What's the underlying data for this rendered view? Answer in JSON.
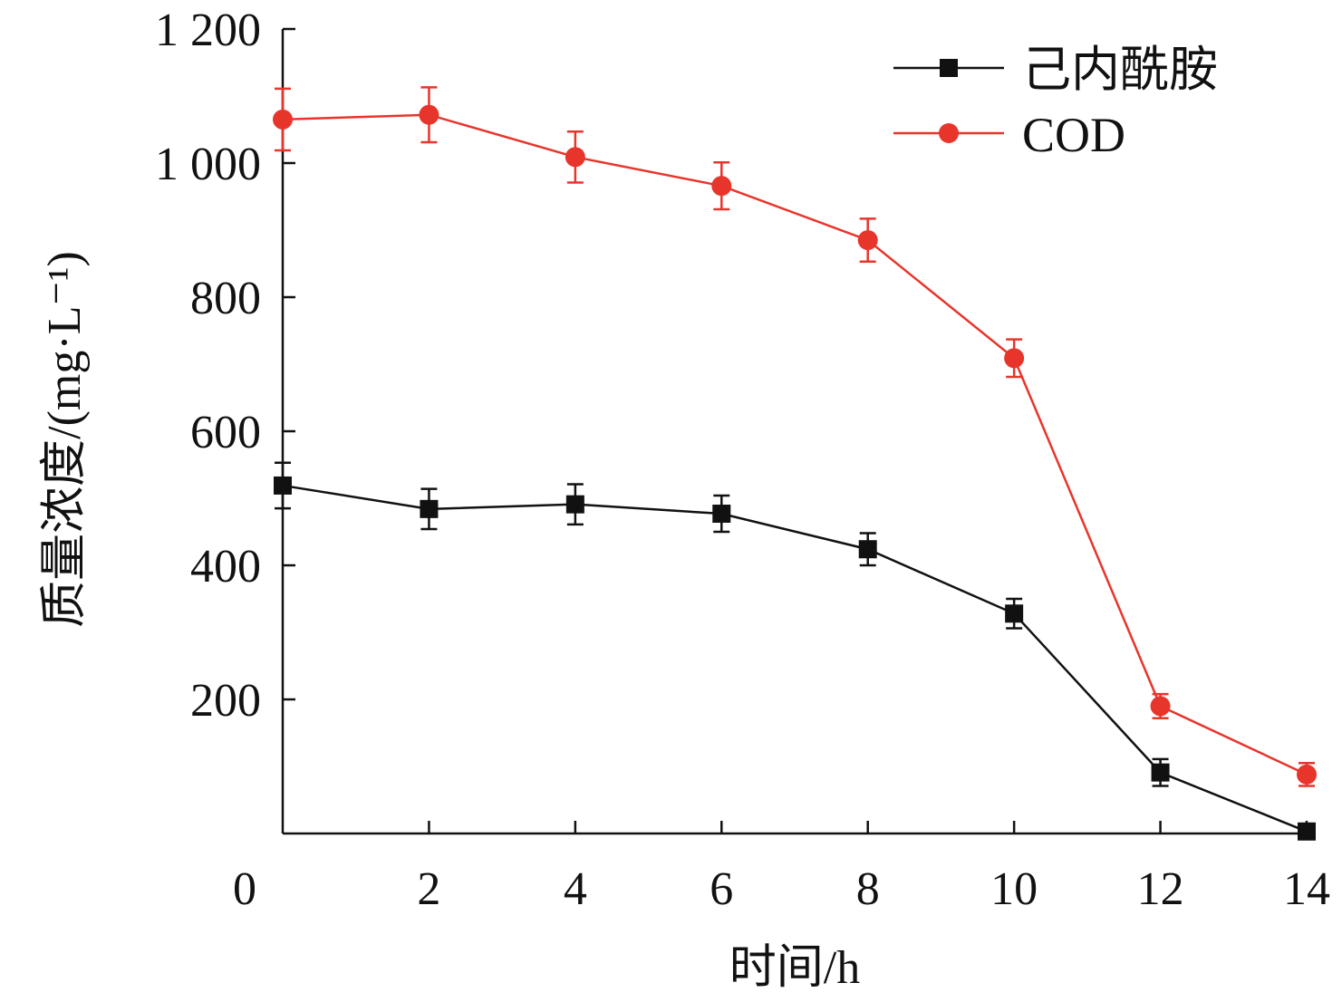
{
  "chart_data": {
    "type": "line",
    "title": "",
    "xlabel": "时间/h",
    "ylabel": "质量浓度/(mg·L⁻¹)",
    "xlim": [
      0,
      14
    ],
    "ylim": [
      0,
      1200
    ],
    "x_ticks": [
      0,
      2,
      4,
      6,
      8,
      10,
      12,
      14
    ],
    "x_tick_labels": [
      "0",
      "2",
      "4",
      "6",
      "8",
      "10",
      "12",
      "14"
    ],
    "y_ticks": [
      200,
      400,
      600,
      800,
      1000,
      1200
    ],
    "y_tick_labels": [
      "200",
      "400",
      "600",
      "800",
      "1 000",
      "1 200"
    ],
    "grid": false,
    "legend_position": "top-right",
    "x": [
      0,
      2,
      4,
      6,
      8,
      10,
      12,
      14
    ],
    "series": [
      {
        "name": "己内酰胺",
        "color": "#111111",
        "marker": "square",
        "values": [
          519,
          484,
          491,
          477,
          424,
          328,
          91,
          3
        ],
        "errors": [
          34,
          30,
          30,
          27,
          24,
          22,
          20,
          0
        ]
      },
      {
        "name": "COD",
        "color": "#e8352c",
        "marker": "circle",
        "values": [
          1065,
          1072,
          1009,
          966,
          885,
          709,
          190,
          88
        ],
        "errors": [
          46,
          41,
          38,
          35,
          32,
          28,
          18,
          17
        ]
      }
    ]
  }
}
